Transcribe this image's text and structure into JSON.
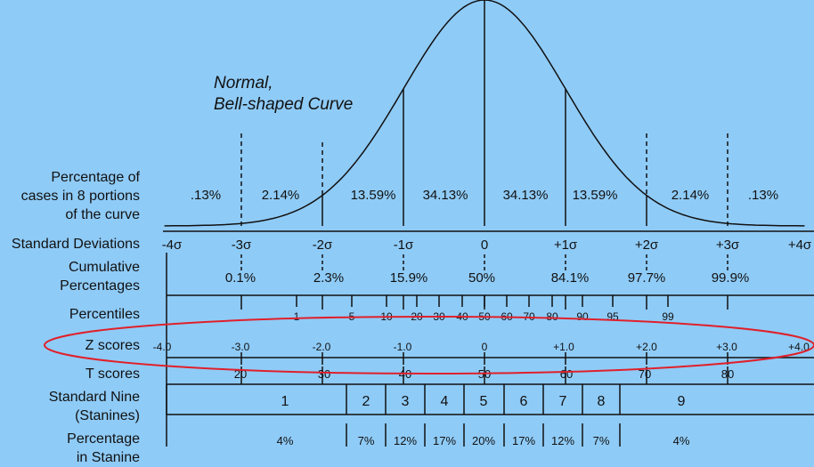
{
  "curve_title": [
    "Normal,",
    "Bell-shaped Curve"
  ],
  "row_labels": {
    "portions": [
      "Percentage of",
      "cases in 8 portions",
      "of the curve"
    ],
    "sd": "Standard Deviations",
    "cumulative": [
      "Cumulative",
      "Percentages"
    ],
    "percentiles": "Percentiles",
    "z": "Z scores",
    "t": "T scores",
    "stanine": [
      "Standard Nine",
      "(Stanines)"
    ],
    "stanine_pct": [
      "Percentage",
      "in Stanine"
    ]
  },
  "portion_percentages": [
    ".13%",
    "2.14%",
    "13.59%",
    "34.13%",
    "34.13%",
    "13.59%",
    "2.14%",
    ".13%"
  ],
  "sd_labels": [
    "-4σ",
    "-3σ",
    "-2σ",
    "-1σ",
    "0",
    "+1σ",
    "+2σ",
    "+3σ",
    "+4σ"
  ],
  "cumulative_percentages": [
    "0.1%",
    "2.3%",
    "15.9%",
    "50%",
    "84.1%",
    "97.7%",
    "99.9%"
  ],
  "percentiles": [
    "1",
    "5",
    "10",
    "20",
    "30",
    "40",
    "50",
    "60",
    "70",
    "80",
    "90",
    "95",
    "99"
  ],
  "z_scores": [
    "-4.0",
    "-3.0",
    "-2.0",
    "-1.0",
    "0",
    "+1.0",
    "+2.0",
    "+3.0",
    "+4.0"
  ],
  "t_scores": [
    "20",
    "30",
    "40",
    "50",
    "60",
    "70",
    "80"
  ],
  "stanines": [
    "1",
    "2",
    "3",
    "4",
    "5",
    "6",
    "7",
    "8",
    "9"
  ],
  "stanine_percentages": [
    "4%",
    "7%",
    "12%",
    "17%",
    "20%",
    "17%",
    "12%",
    "7%",
    "4%"
  ],
  "colors": {
    "background": "#8fcbf7",
    "line": "#111111",
    "highlight_ellipse": "#e0202a"
  }
}
